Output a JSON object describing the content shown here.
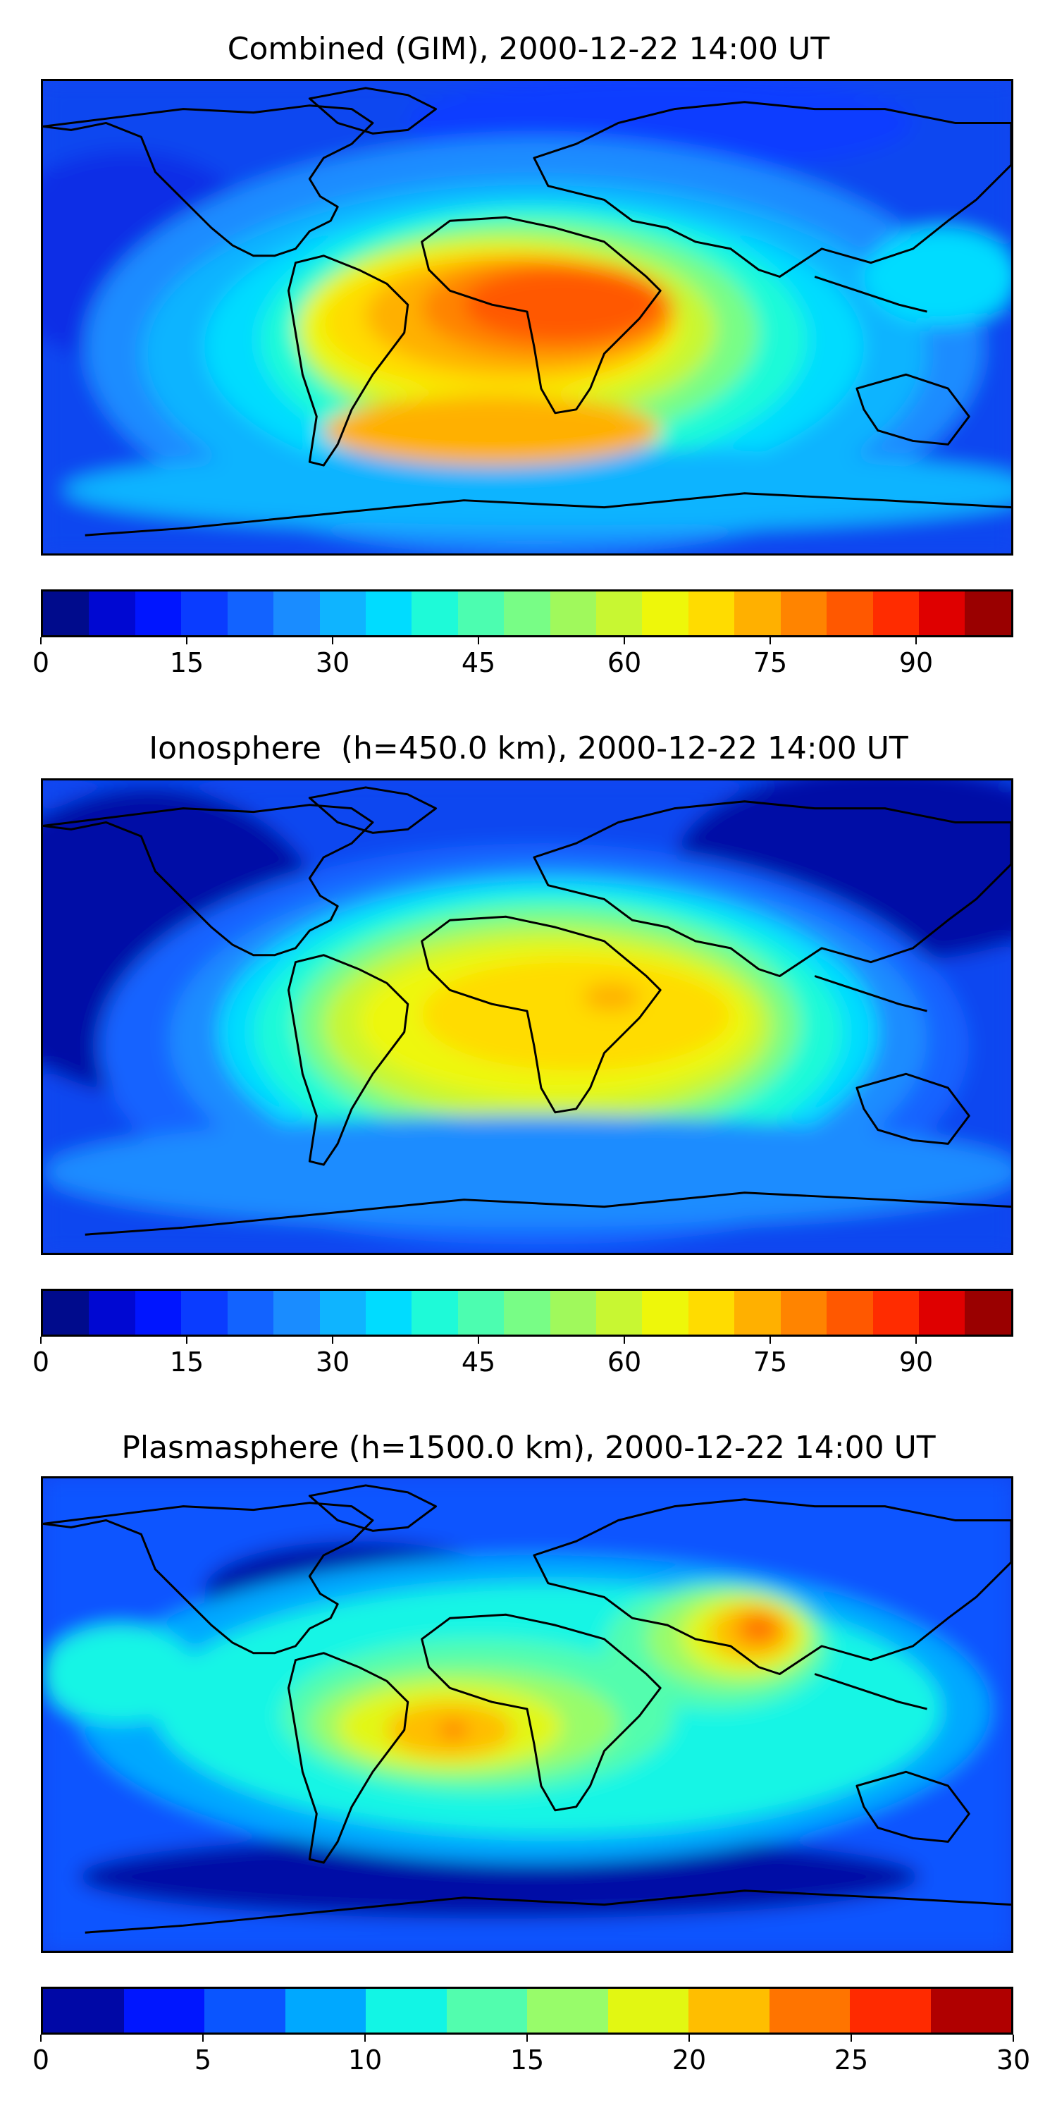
{
  "panels": [
    {
      "title": "Combined (GIM), 2000-12-22 14:00 UT",
      "colorbar": {
        "vmin": 0,
        "vmax": 100,
        "ticks": [
          "0",
          "15",
          "30",
          "45",
          "60",
          "75",
          "90"
        ],
        "tick_values": [
          0,
          15,
          30,
          45,
          60,
          75,
          90
        ],
        "colors": [
          "#000b8c",
          "#0008d2",
          "#0015ff",
          "#0a3cff",
          "#1263ff",
          "#1a8cff",
          "#0fb4ff",
          "#00dcff",
          "#1efad8",
          "#4cfdb0",
          "#78fd86",
          "#a0f95c",
          "#c8f732",
          "#eef70a",
          "#ffdc00",
          "#ffb000",
          "#ff8400",
          "#ff5800",
          "#ff2c00",
          "#df0000",
          "#9a0000"
        ]
      }
    },
    {
      "title": "Ionosphere  (h=450.0 km), 2000-12-22 14:00 UT",
      "colorbar": {
        "vmin": 0,
        "vmax": 100,
        "ticks": [
          "0",
          "15",
          "30",
          "45",
          "60",
          "75",
          "90"
        ],
        "tick_values": [
          0,
          15,
          30,
          45,
          60,
          75,
          90
        ],
        "colors": [
          "#000b8c",
          "#0008d2",
          "#0015ff",
          "#0a3cff",
          "#1263ff",
          "#1a8cff",
          "#0fb4ff",
          "#00dcff",
          "#1efad8",
          "#4cfdb0",
          "#78fd86",
          "#a0f95c",
          "#c8f732",
          "#eef70a",
          "#ffdc00",
          "#ffb000",
          "#ff8400",
          "#ff5800",
          "#ff2c00",
          "#df0000",
          "#9a0000"
        ]
      }
    },
    {
      "title": "Plasmasphere (h=1500.0 km), 2000-12-22 14:00 UT",
      "colorbar": {
        "vmin": 0,
        "vmax": 30,
        "ticks": [
          "0",
          "5",
          "10",
          "15",
          "20",
          "25",
          "30"
        ],
        "tick_values": [
          0,
          5,
          10,
          15,
          20,
          25,
          30
        ],
        "colors": [
          "#0008a6",
          "#0016ff",
          "#0a55ff",
          "#00a8ff",
          "#12f5e5",
          "#52fdae",
          "#98fc6a",
          "#e2f712",
          "#ffbe00",
          "#ff7400",
          "#ff2a00",
          "#b00000"
        ]
      }
    }
  ]
}
